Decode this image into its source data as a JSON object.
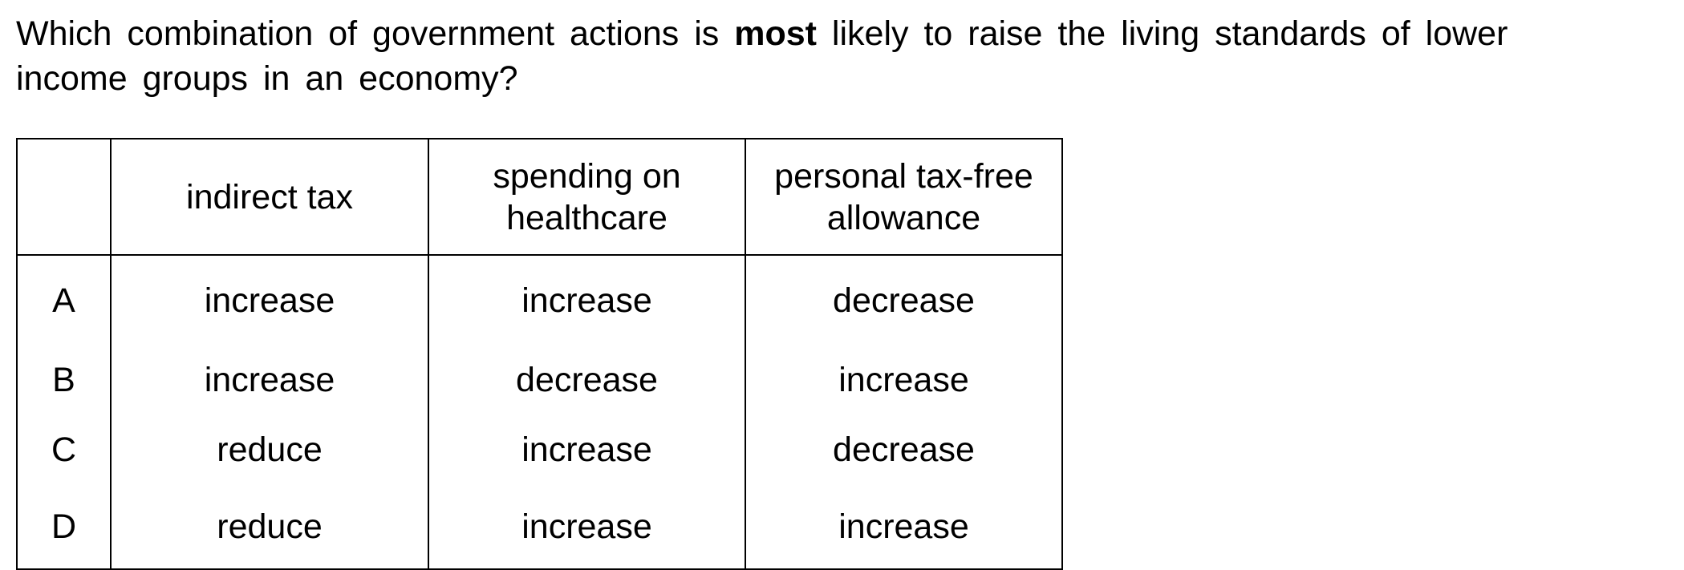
{
  "question": {
    "line1_before": "Which combination of government actions is ",
    "line1_bold": "most",
    "line1_after": " likely to raise the living standards of lower",
    "line2": "income groups in an economy?"
  },
  "table": {
    "headers": [
      "",
      "indirect tax",
      "spending on healthcare",
      "personal tax-free allowance"
    ],
    "header_lines": {
      "col1": [
        "indirect tax"
      ],
      "col2": [
        "spending on",
        "healthcare"
      ],
      "col3": [
        "personal tax-free",
        "allowance"
      ]
    },
    "rows": [
      {
        "letter": "A",
        "indirect_tax": "increase",
        "healthcare": "increase",
        "allowance": "decrease"
      },
      {
        "letter": "B",
        "indirect_tax": "increase",
        "healthcare": "decrease",
        "allowance": "increase"
      },
      {
        "letter": "C",
        "indirect_tax": "reduce",
        "healthcare": "increase",
        "allowance": "decrease"
      },
      {
        "letter": "D",
        "indirect_tax": "reduce",
        "healthcare": "increase",
        "allowance": "increase"
      }
    ]
  }
}
